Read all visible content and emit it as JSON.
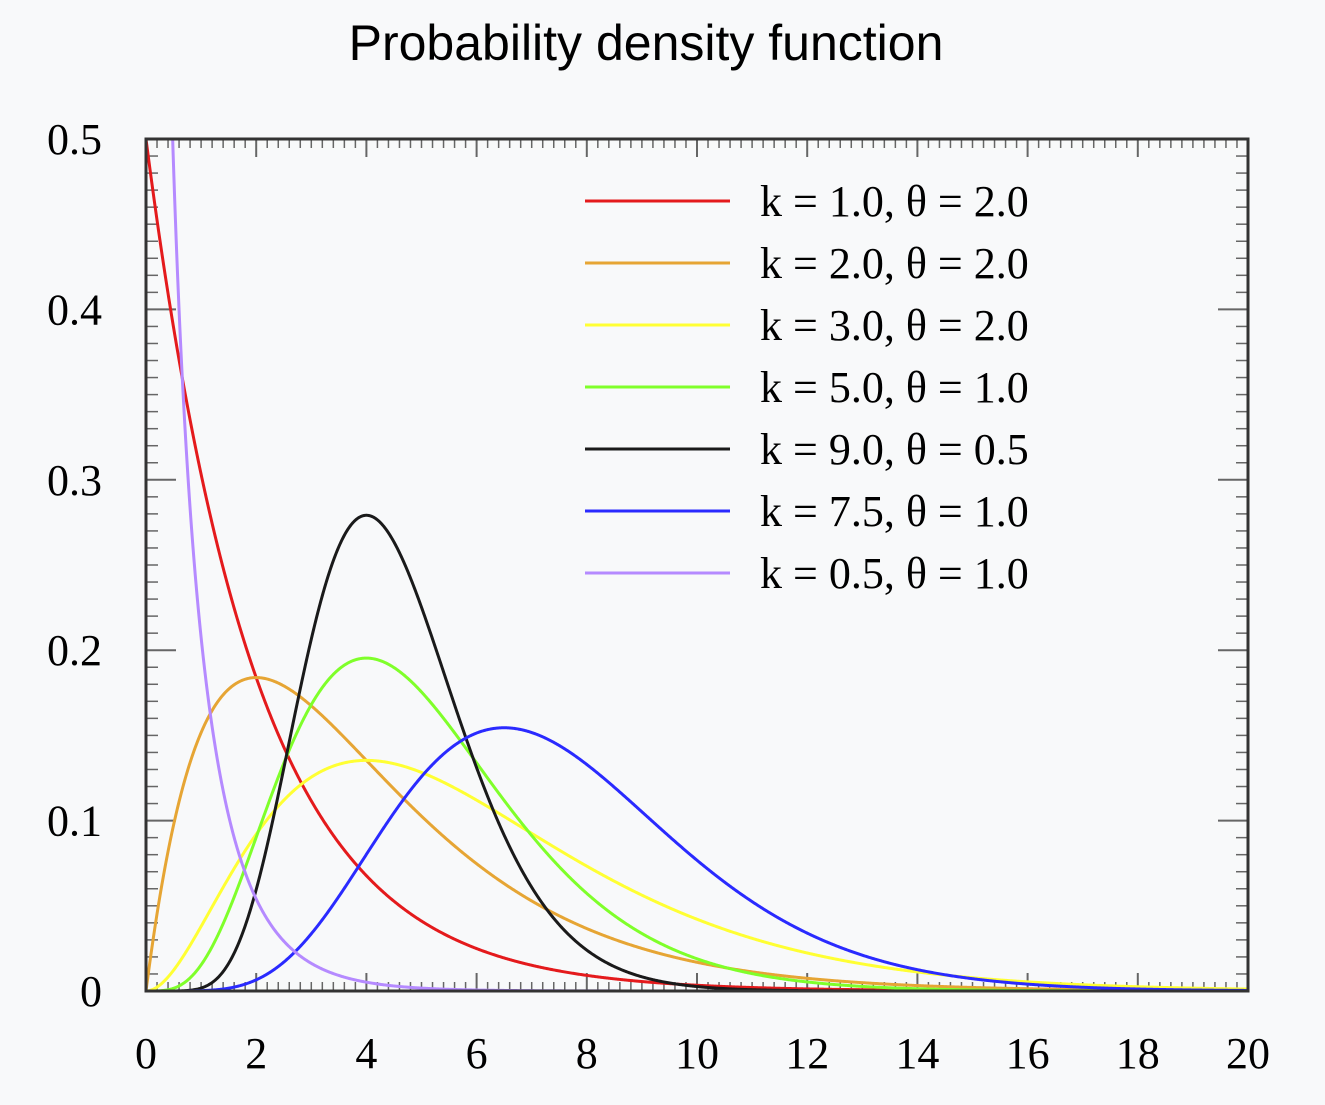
{
  "chart_data": {
    "type": "line",
    "title": "Probability density function",
    "xlabel": "",
    "ylabel": "",
    "xlim": [
      0,
      20
    ],
    "ylim": [
      0,
      0.5
    ],
    "x_ticks": [
      0,
      2,
      4,
      6,
      8,
      10,
      12,
      14,
      16,
      18,
      20
    ],
    "x_tick_labels": [
      "0",
      "2",
      "4",
      "6",
      "8",
      "10",
      "12",
      "14",
      "16",
      "18",
      "20"
    ],
    "y_ticks": [
      0,
      0.1,
      0.2,
      0.3,
      0.4,
      0.5
    ],
    "y_tick_labels": [
      "0",
      "0.1",
      "0.2",
      "0.3",
      "0.4",
      "0.5"
    ],
    "grid": false,
    "legend_position": "top-right",
    "series": [
      {
        "name": "k = 1.0, θ = 2.0",
        "k": 1.0,
        "theta": 2.0,
        "color": "#e41a1c"
      },
      {
        "name": "k = 2.0, θ = 2.0",
        "k": 2.0,
        "theta": 2.0,
        "color": "#e6a534"
      },
      {
        "name": "k = 3.0, θ = 2.0",
        "k": 3.0,
        "theta": 2.0,
        "color": "#ffff33"
      },
      {
        "name": "k = 5.0, θ = 1.0",
        "k": 5.0,
        "theta": 1.0,
        "color": "#7fff2a"
      },
      {
        "name": "k = 9.0, θ = 0.5",
        "k": 9.0,
        "theta": 0.5,
        "color": "#1a1a1a"
      },
      {
        "name": "k = 7.5, θ = 1.0",
        "k": 7.5,
        "theta": 1.0,
        "color": "#2a2aff"
      },
      {
        "name": "k = 0.5, θ = 1.0",
        "k": 0.5,
        "theta": 1.0,
        "color": "#b58aff"
      }
    ]
  }
}
